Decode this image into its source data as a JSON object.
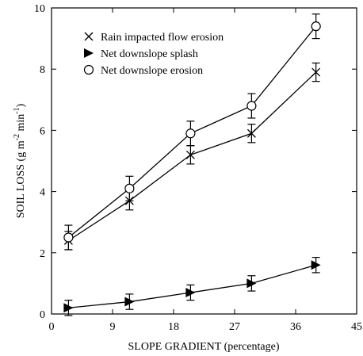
{
  "chart_data": {
    "type": "line",
    "xlabel": "SLOPE GRADIENT (percentage)",
    "ylabel": "SOIL LOSS (g m",
    "ylabel_sup1": "-2",
    "ylabel_mid": " min",
    "ylabel_sup2": "-1",
    "ylabel_end": ")",
    "xlim": [
      0,
      45
    ],
    "ylim": [
      0,
      10
    ],
    "xticks": [
      0,
      9,
      18,
      27,
      36,
      45
    ],
    "yticks": [
      0,
      2,
      4,
      6,
      8,
      10
    ],
    "grid": false,
    "legend_position": "top-left",
    "series": [
      {
        "name": "Rain impacted flow erosion",
        "marker": "x",
        "x": [
          2.5,
          11.5,
          20.5,
          29.5,
          39
        ],
        "y": [
          2.4,
          3.7,
          5.2,
          5.9,
          7.9
        ],
        "err": [
          0.3,
          0.3,
          0.3,
          0.3,
          0.3
        ]
      },
      {
        "name": "Net downslope splash",
        "marker": "triangle-right",
        "x": [
          2.5,
          11.5,
          20.5,
          29.5,
          39
        ],
        "y": [
          0.2,
          0.4,
          0.7,
          1.0,
          1.6
        ],
        "err": [
          0.25,
          0.25,
          0.25,
          0.25,
          0.25
        ]
      },
      {
        "name": "Net downslope erosion",
        "marker": "circle-open",
        "x": [
          2.5,
          11.5,
          20.5,
          29.5,
          39
        ],
        "y": [
          2.5,
          4.1,
          5.9,
          6.8,
          9.4
        ],
        "err": [
          0.4,
          0.4,
          0.4,
          0.4,
          0.4
        ]
      }
    ]
  }
}
